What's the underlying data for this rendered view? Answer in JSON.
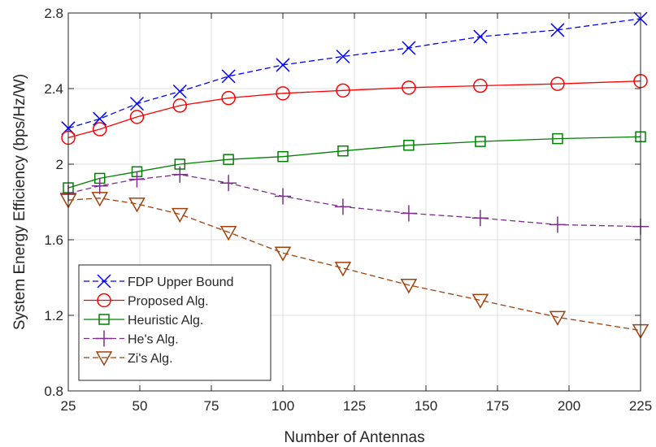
{
  "chart_data": {
    "type": "line",
    "title": "",
    "xlabel": "Number of Antennas",
    "ylabel": "System Energy Efficiency (bps/Hz/W)",
    "xlim": [
      25,
      225
    ],
    "ylim": [
      0.8,
      2.8
    ],
    "xticks": [
      25,
      50,
      75,
      100,
      125,
      150,
      175,
      200,
      225
    ],
    "yticks": [
      0.8,
      1.2,
      1.6,
      2,
      2.4,
      2.8
    ],
    "xtick_labels": [
      "25",
      "50",
      "75",
      "100",
      "125",
      "150",
      "175",
      "200",
      "225"
    ],
    "ytick_labels": [
      "0.8",
      "1.2",
      "1.6",
      "2",
      "2.4",
      "2.8"
    ],
    "grid": true,
    "legend_position": "bottom-left",
    "x": [
      25,
      36,
      49,
      64,
      81,
      100,
      121,
      144,
      169,
      196,
      225
    ],
    "series": [
      {
        "name": "FDP Upper Bound",
        "values": [
          2.19,
          2.24,
          2.32,
          2.385,
          2.465,
          2.525,
          2.57,
          2.615,
          2.675,
          2.71,
          2.77
        ],
        "color": "#0000ff",
        "dash": "dashed",
        "marker": "x"
      },
      {
        "name": "Proposed Alg.",
        "values": [
          2.14,
          2.185,
          2.25,
          2.31,
          2.35,
          2.375,
          2.39,
          2.405,
          2.415,
          2.425,
          2.44
        ],
        "color": "#ff0000",
        "dash": "solid",
        "marker": "circle"
      },
      {
        "name": "Heuristic Alg.",
        "values": [
          1.875,
          1.925,
          1.96,
          2.0,
          2.025,
          2.04,
          2.07,
          2.1,
          2.12,
          2.135,
          2.145
        ],
        "color": "#008000",
        "dash": "solid",
        "marker": "square"
      },
      {
        "name": "He's Alg.",
        "values": [
          1.845,
          1.885,
          1.92,
          1.945,
          1.9,
          1.83,
          1.775,
          1.74,
          1.715,
          1.68,
          1.67
        ],
        "color": "#7e2f8e",
        "dash": "dashed",
        "marker": "plus"
      },
      {
        "name": "Zi's Alg.",
        "values": [
          1.81,
          1.82,
          1.79,
          1.735,
          1.64,
          1.53,
          1.45,
          1.36,
          1.28,
          1.19,
          1.12
        ],
        "color": "#a2400a",
        "dash": "dashed",
        "marker": "triangle-down"
      }
    ]
  }
}
